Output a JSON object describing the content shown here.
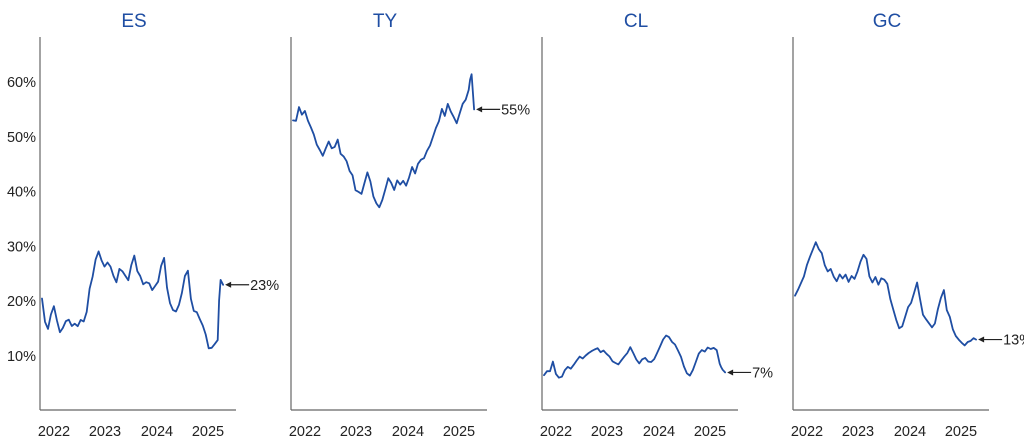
{
  "colors": {
    "series": "#1f4ea3",
    "title": "#1f4ea3",
    "axis": "#666666",
    "text": "#222222"
  },
  "chart_data": [
    {
      "type": "line",
      "title": "ES",
      "y_ticks": [
        "10%",
        "20%",
        "30%",
        "40%",
        "50%",
        "60%"
      ],
      "x_ticks": [
        "2022",
        "2023",
        "2024",
        "2025"
      ],
      "ylim": [
        0,
        68
      ],
      "xlim": [
        2022.0,
        2025.95
      ],
      "end_label": "23%",
      "series": [
        {
          "x": [
            2022.0,
            2022.06,
            2022.12,
            2022.18,
            2022.24,
            2022.3,
            2022.36,
            2022.42,
            2022.48,
            2022.54,
            2022.6,
            2022.66,
            2022.72,
            2022.78,
            2022.84,
            2022.9,
            2022.96,
            2023.02,
            2023.08,
            2023.14,
            2023.2,
            2023.26,
            2023.32,
            2023.38,
            2023.44,
            2023.5,
            2023.56,
            2023.62,
            2023.68,
            2023.74,
            2023.8,
            2023.86,
            2023.92,
            2023.98,
            2024.04,
            2024.1,
            2024.16,
            2024.22,
            2024.28,
            2024.34,
            2024.4,
            2024.46,
            2024.52,
            2024.58,
            2024.64,
            2024.7,
            2024.76,
            2024.82,
            2024.88,
            2024.94,
            2025.0,
            2025.06,
            2025.12,
            2025.18,
            2025.24,
            2025.3,
            2025.36,
            2025.42,
            2025.48,
            2025.54,
            2025.57,
            2025.6,
            2025.65
          ],
          "y": [
            20.5,
            16,
            14.5,
            17,
            18.5,
            16,
            14,
            15,
            16.5,
            17,
            16,
            16.5,
            16,
            17,
            16.5,
            18,
            22,
            24,
            27,
            28.5,
            27,
            26,
            27,
            26.5,
            25,
            24,
            26.5,
            26,
            25,
            24,
            26.5,
            28,
            25,
            24,
            22.5,
            23,
            23,
            22,
            23,
            24,
            27,
            28.5,
            23,
            20,
            18.5,
            18,
            19,
            21,
            24,
            25,
            20,
            18,
            18,
            17,
            16,
            14.5,
            12,
            12,
            12.5,
            13,
            20,
            23.5,
            23
          ]
        }
      ]
    },
    {
      "type": "line",
      "title": "TY",
      "y_ticks": [],
      "x_ticks": [
        "2022",
        "2023",
        "2024",
        "2025"
      ],
      "ylim": [
        0,
        68
      ],
      "xlim": [
        2022.0,
        2025.95
      ],
      "end_label": "55%",
      "series": [
        {
          "x": [
            2022.0,
            2022.06,
            2022.12,
            2022.18,
            2022.24,
            2022.3,
            2022.36,
            2022.42,
            2022.48,
            2022.54,
            2022.6,
            2022.66,
            2022.72,
            2022.78,
            2022.84,
            2022.9,
            2022.96,
            2023.02,
            2023.08,
            2023.14,
            2023.2,
            2023.26,
            2023.32,
            2023.38,
            2023.44,
            2023.5,
            2023.56,
            2023.62,
            2023.68,
            2023.74,
            2023.8,
            2023.86,
            2023.92,
            2023.98,
            2024.04,
            2024.1,
            2024.16,
            2024.22,
            2024.28,
            2024.34,
            2024.4,
            2024.46,
            2024.52,
            2024.58,
            2024.64,
            2024.7,
            2024.76,
            2024.82,
            2024.88,
            2024.94,
            2025.0,
            2025.06,
            2025.12,
            2025.18,
            2025.24,
            2025.3,
            2025.36,
            2025.42,
            2025.48,
            2025.54,
            2025.57,
            2025.6,
            2025.65
          ],
          "y": [
            53,
            53.5,
            56,
            54.5,
            55,
            53,
            51.5,
            50,
            48,
            47,
            46,
            47.5,
            49,
            48,
            48.5,
            50,
            47.5,
            47,
            46,
            44,
            43,
            40,
            39.5,
            39,
            41,
            43,
            41.5,
            39,
            38,
            37.5,
            39,
            41,
            43,
            42,
            40.5,
            42,
            41,
            41.5,
            40.5,
            42,
            44,
            43,
            45,
            46,
            46.5,
            48,
            49,
            50.5,
            52,
            53,
            55,
            53.5,
            55.5,
            54,
            53,
            52,
            54,
            56,
            57,
            59,
            61,
            62,
            55
          ]
        }
      ]
    },
    {
      "type": "line",
      "title": "CL",
      "y_ticks": [],
      "x_ticks": [
        "2022",
        "2023",
        "2024",
        "2025"
      ],
      "ylim": [
        0,
        68
      ],
      "xlim": [
        2022.0,
        2025.95
      ],
      "end_label": "7%",
      "series": [
        {
          "x": [
            2022.0,
            2022.06,
            2022.12,
            2022.18,
            2022.24,
            2022.3,
            2022.36,
            2022.42,
            2022.48,
            2022.54,
            2022.6,
            2022.66,
            2022.72,
            2022.78,
            2022.84,
            2022.9,
            2022.96,
            2023.02,
            2023.08,
            2023.14,
            2023.2,
            2023.26,
            2023.32,
            2023.38,
            2023.44,
            2023.5,
            2023.56,
            2023.62,
            2023.68,
            2023.74,
            2023.8,
            2023.86,
            2023.92,
            2023.98,
            2024.04,
            2024.1,
            2024.16,
            2024.22,
            2024.28,
            2024.34,
            2024.4,
            2024.46,
            2024.52,
            2024.58,
            2024.64,
            2024.7,
            2024.76,
            2024.82,
            2024.88,
            2024.94,
            2025.0,
            2025.06,
            2025.12,
            2025.18,
            2025.24,
            2025.3,
            2025.36,
            2025.42,
            2025.48,
            2025.54,
            2025.57,
            2025.6,
            2025.65
          ],
          "y": [
            6.5,
            6.8,
            7,
            9,
            7,
            6.5,
            6.8,
            8,
            8.5,
            8,
            8.5,
            9,
            9.5,
            9,
            9.5,
            10,
            10.5,
            11,
            11.5,
            11,
            11.5,
            11,
            10.5,
            9.5,
            9,
            8.5,
            9,
            9.5,
            10,
            11,
            10,
            9,
            8.5,
            9.5,
            10,
            9.5,
            9.5,
            10,
            11,
            12,
            13,
            13.5,
            13,
            12,
            11.5,
            10.5,
            9.5,
            8,
            7,
            6.8,
            8,
            9.5,
            11,
            11.5,
            11,
            11.5,
            11,
            11,
            10.5,
            8,
            7.5,
            7.2,
            7
          ]
        }
      ]
    },
    {
      "type": "line",
      "title": "GC",
      "y_ticks": [],
      "x_ticks": [
        "2022",
        "2023",
        "2024",
        "2025"
      ],
      "ylim": [
        0,
        68
      ],
      "xlim": [
        2022.0,
        2025.95
      ],
      "end_label": "13%",
      "series": [
        {
          "x": [
            2022.0,
            2022.06,
            2022.12,
            2022.18,
            2022.24,
            2022.3,
            2022.36,
            2022.42,
            2022.48,
            2022.54,
            2022.6,
            2022.66,
            2022.72,
            2022.78,
            2022.84,
            2022.9,
            2022.96,
            2023.02,
            2023.08,
            2023.14,
            2023.2,
            2023.26,
            2023.32,
            2023.38,
            2023.44,
            2023.5,
            2023.56,
            2023.62,
            2023.68,
            2023.74,
            2023.8,
            2023.86,
            2023.92,
            2023.98,
            2024.04,
            2024.1,
            2024.16,
            2024.22,
            2024.28,
            2024.34,
            2024.4,
            2024.46,
            2024.52,
            2024.58,
            2024.64,
            2024.7,
            2024.76,
            2024.82,
            2024.88,
            2024.94,
            2025.0,
            2025.06,
            2025.12,
            2025.18,
            2025.24,
            2025.3,
            2025.36,
            2025.42,
            2025.48,
            2025.54,
            2025.57,
            2025.6,
            2025.65
          ],
          "y": [
            21,
            22,
            23,
            24,
            26,
            27.5,
            29,
            30.5,
            29.5,
            29,
            27,
            26,
            26.5,
            25,
            24,
            25,
            24,
            24.5,
            23,
            24,
            23.5,
            25,
            27,
            28.5,
            28,
            25,
            24,
            25,
            23.5,
            24.5,
            24,
            23,
            20,
            18,
            16,
            14.5,
            15,
            17,
            19,
            20,
            22,
            24,
            21,
            18,
            17,
            16,
            15,
            15.5,
            18,
            20,
            21.5,
            18,
            17,
            15,
            14,
            13.5,
            13,
            12.5,
            13,
            13,
            13,
            13,
            13
          ]
        }
      ]
    }
  ]
}
